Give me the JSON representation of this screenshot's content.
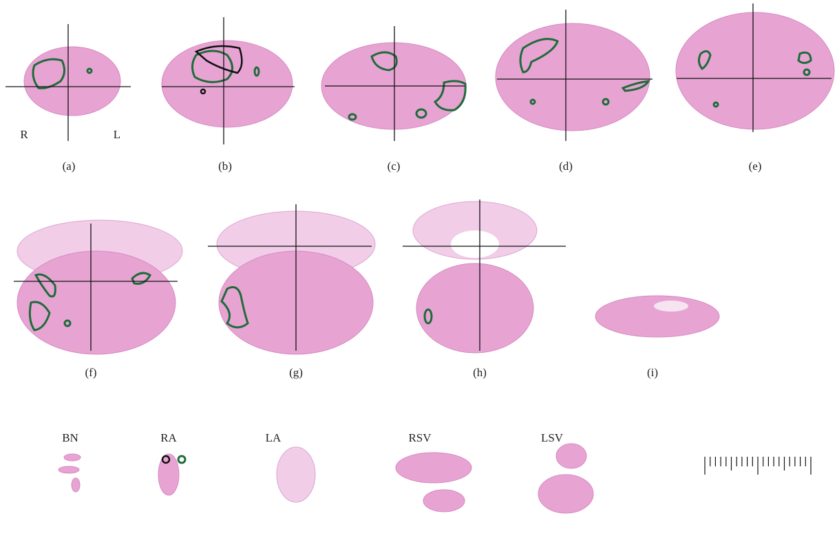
{
  "figure": {
    "orientation": {
      "right": "R",
      "left": "L"
    },
    "panels": [
      "(a)",
      "(b)",
      "(c)",
      "(d)",
      "(e)",
      "(f)",
      "(g)",
      "(h)",
      "(i)"
    ],
    "samples": [
      "BN",
      "RA",
      "LA",
      "RSV",
      "LSV"
    ]
  }
}
